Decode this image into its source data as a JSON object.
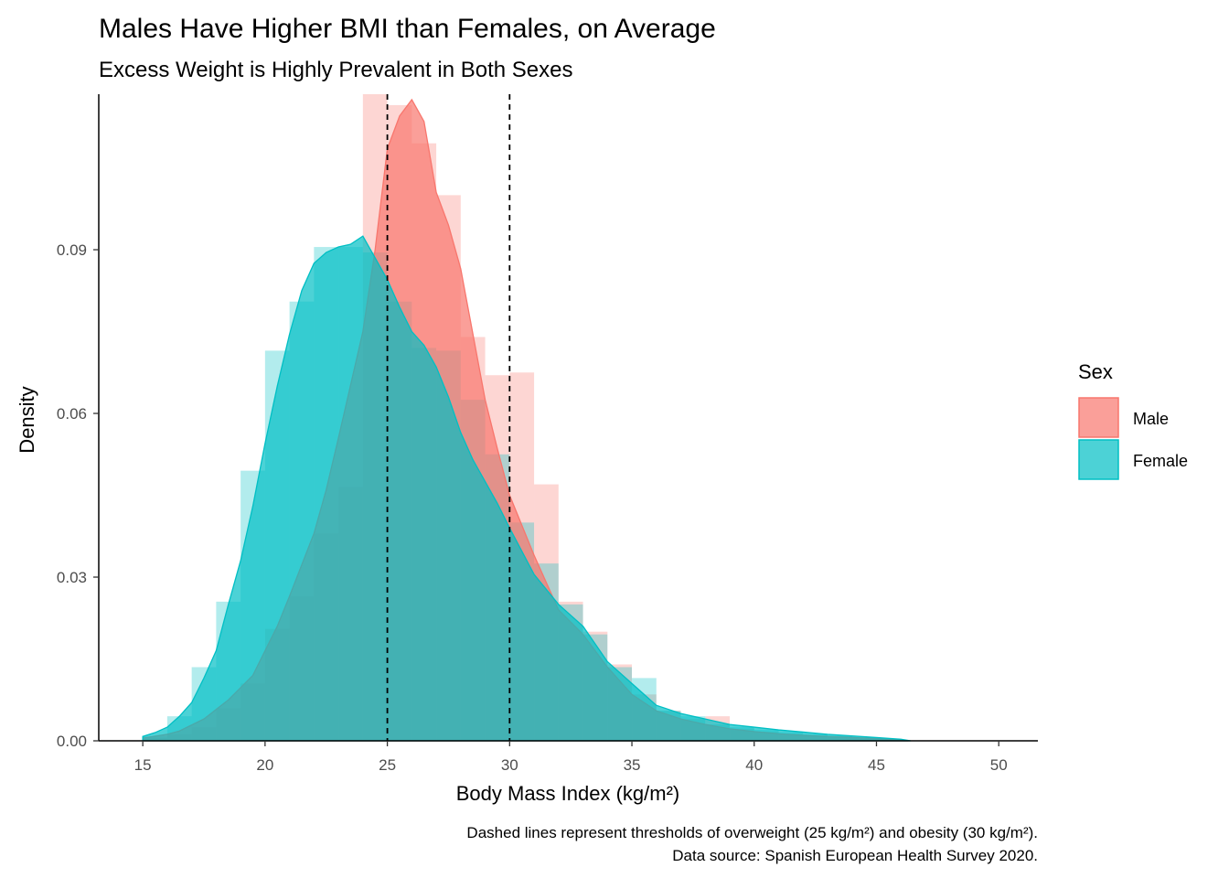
{
  "chart_data": {
    "type": "area",
    "title": "Males Have Higher BMI than Females, on Average",
    "subtitle": "Excess Weight is Highly Prevalent in Both Sexes",
    "xlabel": "Body Mass Index (kg/m²)",
    "ylabel": "Density",
    "xlim": [
      13.2,
      51.6
    ],
    "ylim": [
      0,
      0.1185
    ],
    "x_ticks": [
      15,
      20,
      25,
      30,
      35,
      40,
      45,
      50
    ],
    "x_tick_labels": [
      "15",
      "20",
      "25",
      "30",
      "35",
      "40",
      "45",
      "50"
    ],
    "y_ticks": [
      0,
      0.03,
      0.06,
      0.09
    ],
    "y_tick_labels": [
      "0.00",
      "0.03",
      "0.06",
      "0.09"
    ],
    "grid": false,
    "legend": {
      "title": "Sex",
      "position": "right",
      "entries": [
        {
          "name": "Male",
          "fill": "#F8766D",
          "line": "#F8766D"
        },
        {
          "name": "Female",
          "fill": "#00BFC4",
          "line": "#00BFC4"
        }
      ]
    },
    "reference_lines": [
      {
        "x": 25,
        "style": "dashed"
      },
      {
        "x": 30,
        "style": "dashed"
      }
    ],
    "caption_lines": [
      "Dashed lines represent thresholds of overweight (25 kg/m²) and obesity (30 kg/m²).",
      "Data source: Spanish European Health Survey 2020."
    ],
    "series": [
      {
        "name": "Male",
        "color": "#F8766D",
        "density": {
          "x": [
            15.0,
            16.0,
            16.5,
            17.5,
            18.5,
            19.5,
            20.0,
            20.5,
            21.0,
            22.0,
            22.5,
            23.0,
            24.0,
            24.5,
            25.0,
            25.5,
            26.0,
            26.5,
            27.0,
            27.5,
            28.0,
            28.5,
            29.0,
            29.5,
            30.0,
            31.0,
            32.0,
            33.0,
            34.0,
            35.0,
            36.0,
            37.0,
            38.0,
            39.0,
            40.0,
            41.0,
            42.0,
            43.0,
            44.0,
            45.0,
            46.0,
            46.3
          ],
          "y": [
            0.0005,
            0.0012,
            0.0018,
            0.004,
            0.0075,
            0.012,
            0.0165,
            0.021,
            0.0265,
            0.038,
            0.046,
            0.0555,
            0.075,
            0.09,
            0.1085,
            0.1145,
            0.1175,
            0.1135,
            0.1005,
            0.0945,
            0.0865,
            0.0745,
            0.0625,
            0.0535,
            0.045,
            0.034,
            0.024,
            0.0195,
            0.0135,
            0.0085,
            0.0055,
            0.004,
            0.003,
            0.0022,
            0.0017,
            0.0013,
            0.001,
            0.0008,
            0.0006,
            0.0004,
            0.0002,
            0.0
          ]
        },
        "histogram": {
          "bin_width": 1,
          "bin_starts": [
            15,
            16,
            17,
            18,
            19,
            20,
            21,
            22,
            23,
            24,
            25,
            26,
            27,
            28,
            29,
            30,
            31,
            32,
            33,
            34,
            35,
            36,
            37,
            38,
            39,
            40,
            41,
            42,
            43,
            44,
            45
          ],
          "values": [
            0.0005,
            0.0012,
            0.0025,
            0.006,
            0.0105,
            0.0205,
            0.0265,
            0.038,
            0.0465,
            0.1185,
            0.1165,
            0.1095,
            0.1,
            0.074,
            0.067,
            0.0675,
            0.047,
            0.0255,
            0.02,
            0.014,
            0.0085,
            0.0055,
            0.004,
            0.0045,
            0.0022,
            0.0017,
            0.0013,
            0.001,
            0.0008,
            0.0006,
            0.0004
          ]
        }
      },
      {
        "name": "Female",
        "color": "#00BFC4",
        "density": {
          "x": [
            15.0,
            15.5,
            16.0,
            16.5,
            17.0,
            17.5,
            18.0,
            18.5,
            19.0,
            19.5,
            20.0,
            20.5,
            21.0,
            21.5,
            22.0,
            22.5,
            23.0,
            23.5,
            24.0,
            24.5,
            25.0,
            25.5,
            26.0,
            26.5,
            27.0,
            27.5,
            28.0,
            28.5,
            29.0,
            29.5,
            30.0,
            31.0,
            32.0,
            33.0,
            34.0,
            35.0,
            36.0,
            37.0,
            38.0,
            39.0,
            40.0,
            41.0,
            42.0,
            43.0,
            44.0,
            45.0,
            46.0,
            46.4
          ],
          "y": [
            0.0008,
            0.0015,
            0.0025,
            0.0045,
            0.007,
            0.0115,
            0.0165,
            0.025,
            0.033,
            0.043,
            0.0545,
            0.065,
            0.0745,
            0.0825,
            0.0875,
            0.0895,
            0.0905,
            0.091,
            0.0925,
            0.0885,
            0.0845,
            0.0795,
            0.075,
            0.0725,
            0.0685,
            0.063,
            0.0565,
            0.0515,
            0.0475,
            0.0435,
            0.039,
            0.0305,
            0.025,
            0.021,
            0.0145,
            0.0105,
            0.0065,
            0.005,
            0.004,
            0.003,
            0.0025,
            0.002,
            0.0016,
            0.0012,
            0.0009,
            0.0006,
            0.0003,
            0.0
          ]
        },
        "histogram": {
          "bin_width": 1,
          "bin_starts": [
            15,
            16,
            17,
            18,
            19,
            20,
            21,
            22,
            23,
            24,
            25,
            26,
            27,
            28,
            29,
            30,
            31,
            32,
            33,
            34,
            35,
            36,
            37,
            38,
            39,
            40,
            41,
            42,
            43,
            44,
            45
          ],
          "values": [
            0.0008,
            0.0045,
            0.0135,
            0.0255,
            0.0495,
            0.0715,
            0.0805,
            0.0905,
            0.0905,
            0.0895,
            0.0805,
            0.072,
            0.0715,
            0.0625,
            0.0525,
            0.04,
            0.0325,
            0.025,
            0.0195,
            0.0135,
            0.0115,
            0.0055,
            0.0045,
            0.003,
            0.0025,
            0.002,
            0.0016,
            0.0012,
            0.0009,
            0.0006,
            0.0003
          ]
        }
      }
    ]
  }
}
